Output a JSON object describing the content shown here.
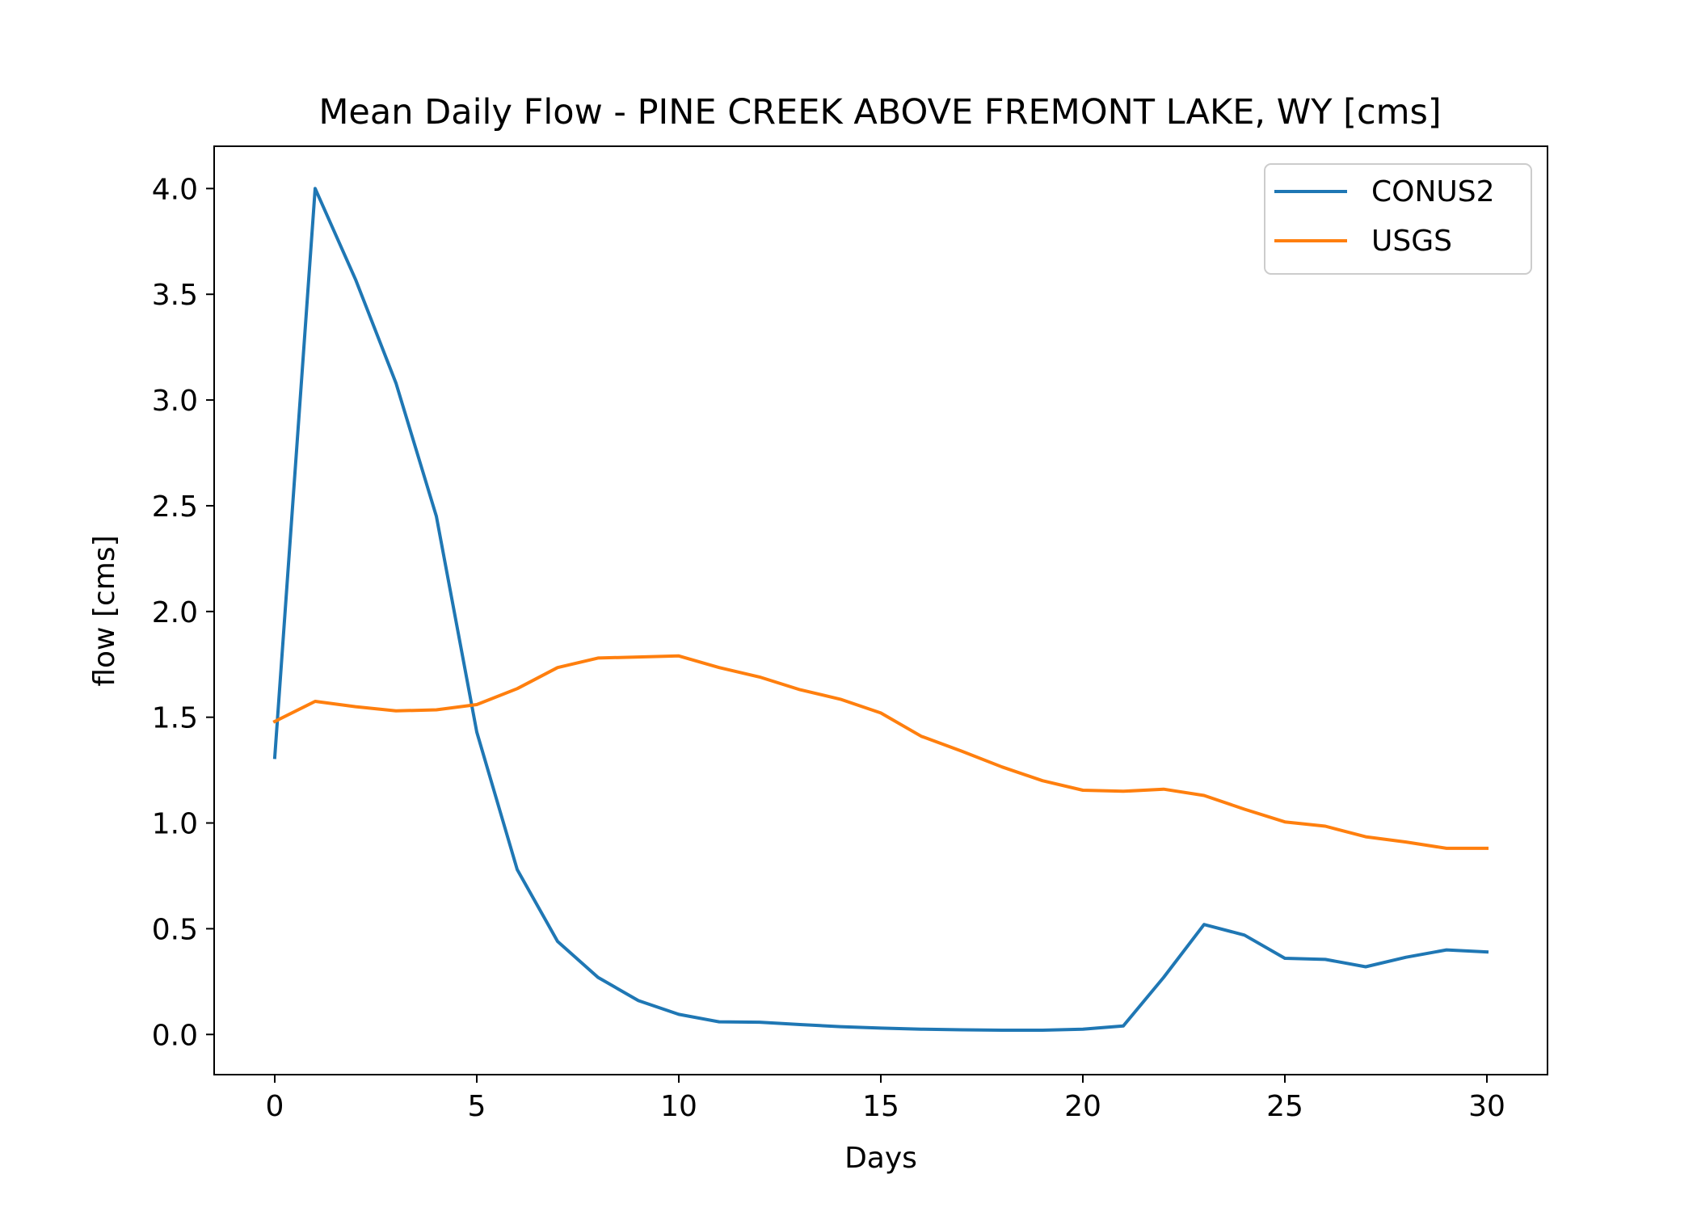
{
  "chart_data": {
    "type": "line",
    "title": "Mean Daily Flow - PINE CREEK ABOVE FREMONT LAKE, WY [cms]",
    "xlabel": "Days",
    "ylabel": "flow [cms]",
    "xlim": [
      -1.5,
      31.5
    ],
    "ylim": [
      -0.19,
      4.2
    ],
    "xticks": [
      0,
      5,
      10,
      15,
      20,
      25,
      30
    ],
    "xtick_labels": [
      "0",
      "5",
      "10",
      "15",
      "20",
      "25",
      "30"
    ],
    "yticks": [
      0.0,
      0.5,
      1.0,
      1.5,
      2.0,
      2.5,
      3.0,
      3.5,
      4.0
    ],
    "ytick_labels": [
      "0.0",
      "0.5",
      "1.0",
      "1.5",
      "2.0",
      "2.5",
      "3.0",
      "3.5",
      "4.0"
    ],
    "grid": false,
    "legend_position": "top-right",
    "x": [
      0,
      1,
      2,
      3,
      4,
      5,
      6,
      7,
      8,
      9,
      10,
      11,
      12,
      13,
      14,
      15,
      16,
      17,
      18,
      19,
      20,
      21,
      22,
      23,
      24,
      25,
      26,
      27,
      28,
      29,
      30
    ],
    "series": [
      {
        "name": "CONUS2",
        "color": "#1f77b4",
        "values": [
          1.31,
          4.0,
          3.57,
          3.08,
          2.45,
          1.43,
          0.78,
          0.44,
          0.27,
          0.16,
          0.095,
          0.06,
          0.058,
          0.047,
          0.037,
          0.03,
          0.025,
          0.022,
          0.02,
          0.02,
          0.025,
          0.04,
          0.27,
          0.52,
          0.47,
          0.36,
          0.355,
          0.32,
          0.365,
          0.4,
          0.39
        ]
      },
      {
        "name": "USGS",
        "color": "#ff7f0e",
        "values": [
          1.48,
          1.575,
          1.55,
          1.53,
          1.535,
          1.56,
          1.635,
          1.735,
          1.78,
          1.785,
          1.79,
          1.735,
          1.69,
          1.63,
          1.585,
          1.52,
          1.41,
          1.34,
          1.265,
          1.2,
          1.155,
          1.15,
          1.16,
          1.13,
          1.065,
          1.005,
          0.985,
          0.935,
          0.91,
          0.88,
          0.88
        ]
      }
    ]
  }
}
